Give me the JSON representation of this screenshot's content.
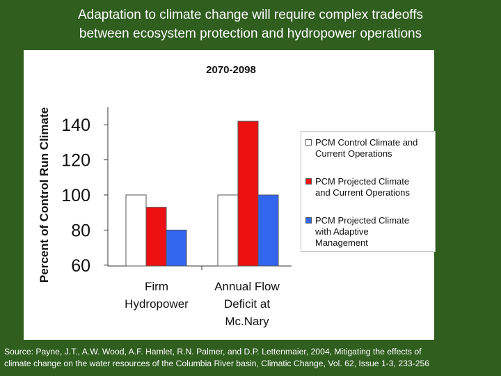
{
  "slide": {
    "title_lines": [
      "Adaptation to climate change will require complex tradeoffs",
      "between ecosystem protection and hydropower operations"
    ],
    "source_lines": [
      "Source: Payne, J.T., A.W. Wood, A.F. Hamlet, R.N. Palmer, and D.P. Lettenmaier, 2004, Mitigating the effects of",
      "climate change on the water resources of the Columbia River basin, Climatic Change, Vol. 62, Issue 1-3, 233-256"
    ],
    "background_color": "#2f5e1f"
  },
  "chart_data": {
    "type": "bar",
    "title": "2070-2098",
    "ylabel": "Percent of Control Run Climate",
    "xlabel": "",
    "ylim": [
      60,
      145
    ],
    "yticks": [
      60,
      80,
      100,
      120,
      140
    ],
    "categories": [
      [
        "Firm",
        "Hydropower"
      ],
      [
        "Annual Flow",
        "Deficit at",
        "Mc.Nary"
      ]
    ],
    "series": [
      {
        "name": [
          "PCM Control Climate and",
          "Current Operations"
        ],
        "color": "#ffffff",
        "values": [
          100,
          100
        ]
      },
      {
        "name": [
          "PCM Projected Climate",
          "and Current Operations"
        ],
        "color": "#ee1111",
        "values": [
          93,
          142
        ]
      },
      {
        "name": [
          "PCM Projected Climate",
          "with Adaptive",
          "Management"
        ],
        "color": "#3366ee",
        "values": [
          80,
          100
        ]
      }
    ],
    "legend_position": "right",
    "grid": false
  }
}
